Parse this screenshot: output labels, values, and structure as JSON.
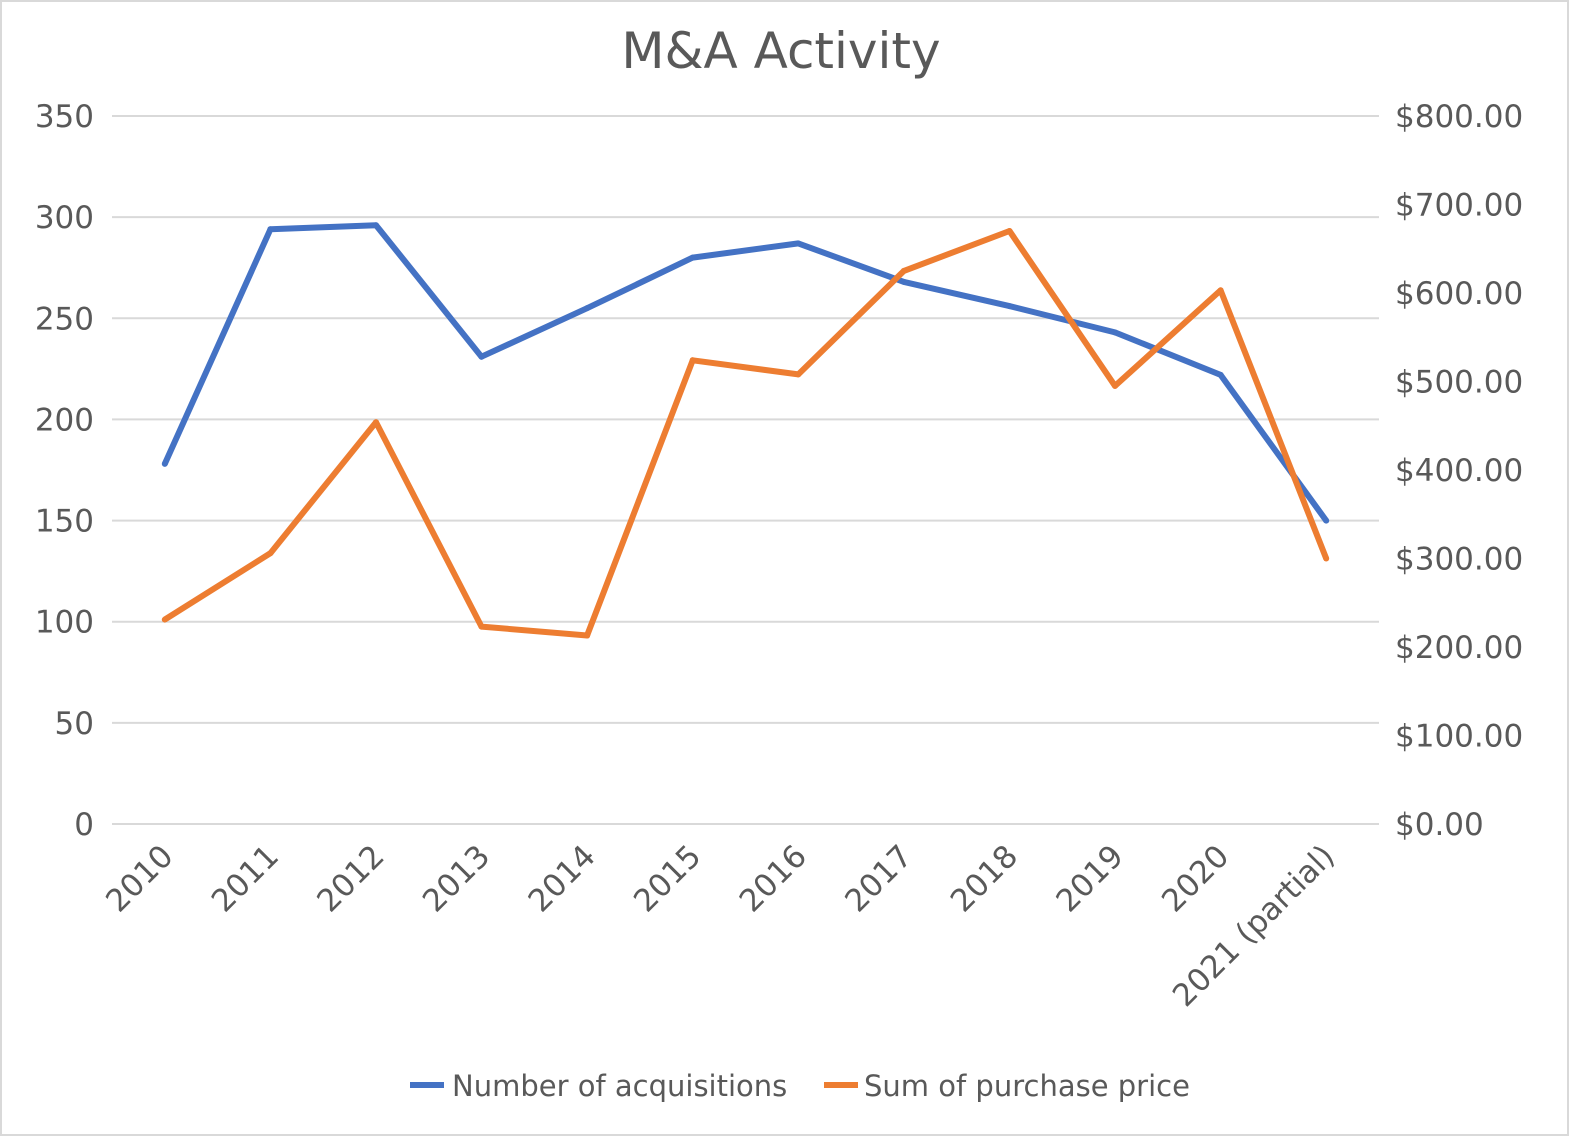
{
  "chart_data": {
    "type": "line",
    "title": "M&A Activity",
    "categories": [
      "2010",
      "2011",
      "2012",
      "2013",
      "2014",
      "2015",
      "2016",
      "2017",
      "2018",
      "2019",
      "2020",
      "2021 (partial)"
    ],
    "series": [
      {
        "name": "Number of acquisitions",
        "axis": "left",
        "color": "#4472c4",
        "values": [
          178,
          294,
          296,
          231,
          255,
          280,
          287,
          268,
          256,
          243,
          222,
          150
        ]
      },
      {
        "name": "Sum of purchase price",
        "axis": "right",
        "color": "#ed7d31",
        "values": [
          231,
          306,
          454,
          223,
          213,
          524,
          508,
          625,
          670,
          495,
          603,
          300
        ]
      }
    ],
    "y_left": {
      "min": 0,
      "max": 350,
      "step": 50,
      "tick_labels": [
        "0",
        "50",
        "100",
        "150",
        "200",
        "250",
        "300",
        "350"
      ]
    },
    "y_right": {
      "min": 0,
      "max": 800,
      "step": 100,
      "tick_labels": [
        "$0.00",
        "$100.00",
        "$200.00",
        "$300.00",
        "$400.00",
        "$500.00",
        "$600.00",
        "$700.00",
        "$800.00"
      ]
    },
    "grid": true,
    "legend": "bottom",
    "xlabel": "",
    "ylabel": ""
  }
}
